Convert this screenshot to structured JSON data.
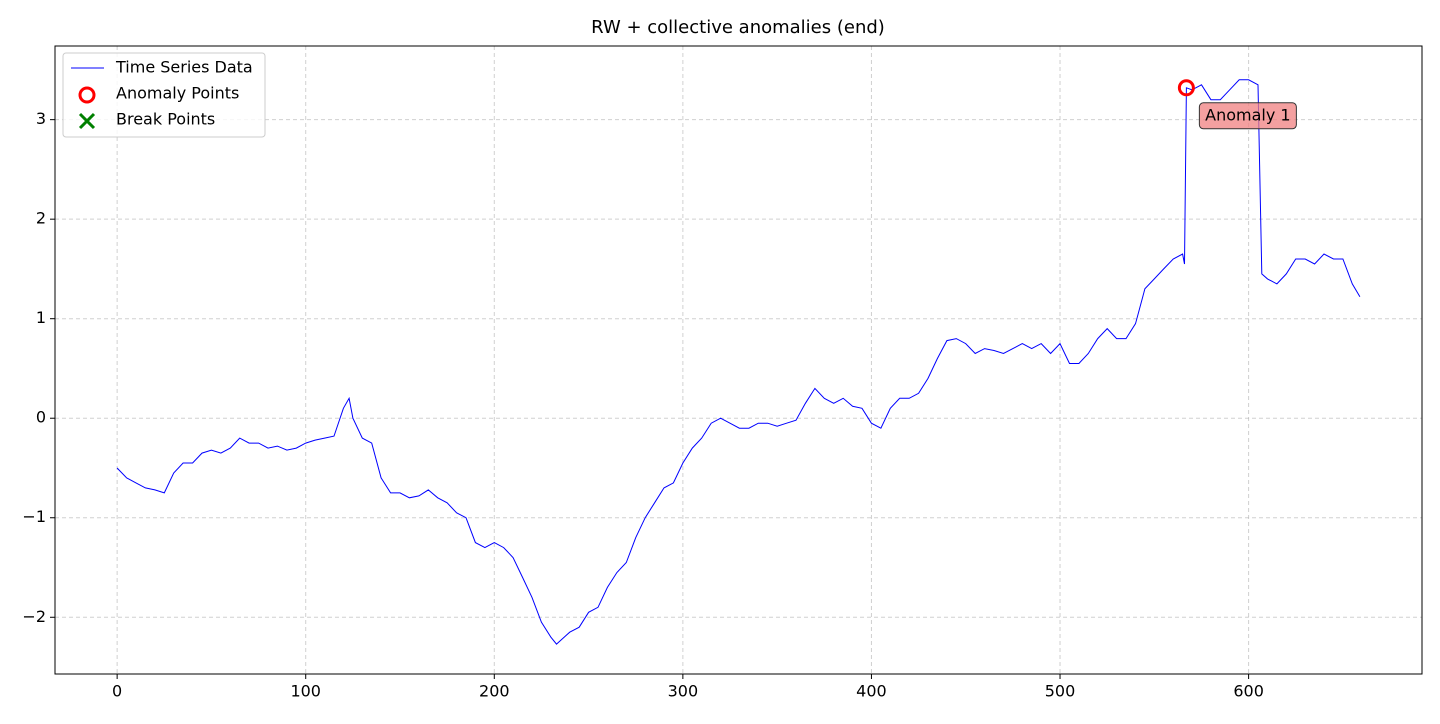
{
  "chart_data": {
    "type": "line",
    "title": "RW + collective anomalies (end)",
    "x": [
      0,
      5,
      10,
      15,
      20,
      25,
      30,
      35,
      40,
      45,
      50,
      55,
      60,
      65,
      70,
      75,
      80,
      85,
      90,
      95,
      100,
      105,
      110,
      115,
      120,
      123,
      125,
      130,
      135,
      140,
      145,
      150,
      155,
      160,
      165,
      170,
      175,
      180,
      185,
      190,
      195,
      200,
      205,
      210,
      215,
      220,
      225,
      230,
      233,
      240,
      245,
      250,
      255,
      260,
      265,
      270,
      275,
      280,
      285,
      290,
      295,
      300,
      305,
      310,
      315,
      320,
      325,
      330,
      335,
      340,
      345,
      350,
      355,
      360,
      365,
      370,
      375,
      380,
      385,
      390,
      395,
      400,
      405,
      410,
      415,
      420,
      425,
      430,
      435,
      440,
      445,
      450,
      455,
      460,
      465,
      470,
      475,
      480,
      485,
      490,
      495,
      500,
      505,
      510,
      515,
      520,
      525,
      530,
      535,
      540,
      545,
      550,
      555,
      560,
      565,
      566,
      567,
      570,
      575,
      580,
      585,
      590,
      595,
      600,
      605,
      607,
      610,
      615,
      620,
      625,
      630,
      635,
      640,
      645,
      650,
      655,
      659
    ],
    "series": [
      {
        "name": "Time Series Data",
        "color": "#0000ff",
        "values": [
          -0.5,
          -0.6,
          -0.65,
          -0.7,
          -0.72,
          -0.75,
          -0.55,
          -0.45,
          -0.45,
          -0.35,
          -0.32,
          -0.35,
          -0.3,
          -0.2,
          -0.25,
          -0.25,
          -0.3,
          -0.28,
          -0.32,
          -0.3,
          -0.25,
          -0.22,
          -0.2,
          -0.18,
          0.1,
          0.2,
          0.0,
          -0.2,
          -0.25,
          -0.6,
          -0.75,
          -0.75,
          -0.8,
          -0.78,
          -0.72,
          -0.8,
          -0.85,
          -0.95,
          -1.0,
          -1.25,
          -1.3,
          -1.25,
          -1.3,
          -1.4,
          -1.6,
          -1.8,
          -2.05,
          -2.2,
          -2.27,
          -2.15,
          -2.1,
          -1.95,
          -1.9,
          -1.7,
          -1.55,
          -1.45,
          -1.2,
          -1.0,
          -0.85,
          -0.7,
          -0.65,
          -0.45,
          -0.3,
          -0.2,
          -0.05,
          0.0,
          -0.05,
          -0.1,
          -0.1,
          -0.05,
          -0.05,
          -0.08,
          -0.05,
          -0.02,
          0.15,
          0.3,
          0.2,
          0.15,
          0.2,
          0.12,
          0.1,
          -0.05,
          -0.1,
          0.1,
          0.2,
          0.2,
          0.25,
          0.4,
          0.6,
          0.78,
          0.8,
          0.75,
          0.65,
          0.7,
          0.68,
          0.65,
          0.7,
          0.75,
          0.7,
          0.75,
          0.65,
          0.75,
          0.55,
          0.55,
          0.65,
          0.8,
          0.9,
          0.8,
          0.8,
          0.95,
          1.3,
          1.4,
          1.5,
          1.6,
          1.65,
          1.55,
          3.32,
          3.3,
          3.35,
          3.2,
          3.2,
          3.3,
          3.4,
          3.4,
          3.35,
          1.45,
          1.4,
          1.35,
          1.45,
          1.6,
          1.6,
          1.55,
          1.65,
          1.6,
          1.6,
          1.35,
          1.22
        ]
      },
      {
        "name": "Anomaly Points",
        "color": "#ff0000",
        "marker": "circle",
        "x": [
          567
        ],
        "values": [
          3.32
        ]
      },
      {
        "name": "Break Points",
        "color": "#008000",
        "marker": "x",
        "x": [],
        "values": []
      }
    ],
    "annotations": [
      {
        "text": "Anomaly 1",
        "x": 567,
        "y": 3.32
      }
    ],
    "xlim": [
      -32.95,
      691.95
    ],
    "xticks": [
      0,
      100,
      200,
      300,
      400,
      500,
      600
    ],
    "ylim": [
      -2.57,
      3.74
    ],
    "yticks": [
      {
        "value": -2,
        "label": "−2"
      },
      {
        "value": -1,
        "label": "−1"
      },
      0,
      1,
      2,
      3
    ],
    "grid": true,
    "legend": "upper left"
  }
}
